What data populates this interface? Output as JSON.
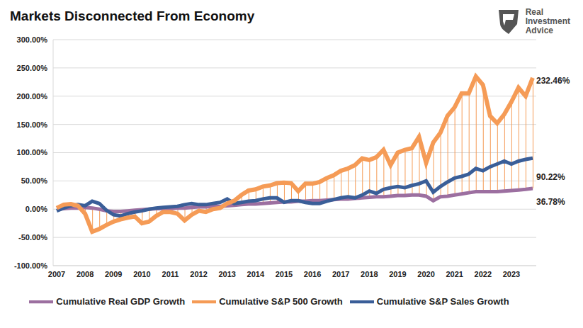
{
  "chart_data": {
    "type": "line",
    "title": "Markets Disconnected From Economy",
    "logo_text": "Real Investment Advice",
    "categories": [
      "2007",
      null,
      null,
      null,
      "2008",
      null,
      null,
      null,
      "2009",
      null,
      null,
      null,
      "2010",
      null,
      null,
      null,
      "2011",
      null,
      null,
      null,
      "2012",
      null,
      null,
      null,
      "2013",
      null,
      null,
      null,
      "2014",
      null,
      null,
      null,
      "2015",
      null,
      null,
      null,
      "2016",
      null,
      null,
      null,
      "2017",
      null,
      null,
      null,
      "2018",
      null,
      null,
      null,
      "2019",
      null,
      null,
      null,
      "2020",
      null,
      null,
      null,
      "2021",
      null,
      null,
      null,
      "2022",
      null,
      null,
      null,
      "2023",
      null,
      null,
      null
    ],
    "series": [
      {
        "name": "Cumulative S&P 500 Growth",
        "color": "#F59B56",
        "values": [
          2,
          8,
          9,
          6,
          -8,
          -40,
          -35,
          -28,
          -22,
          -18,
          -15,
          -13,
          -25,
          -22,
          -12,
          -5,
          -5,
          -8,
          -20,
          -10,
          -3,
          -5,
          0,
          2,
          10,
          15,
          25,
          33,
          35,
          40,
          42,
          46,
          47,
          46,
          32,
          45,
          45,
          48,
          55,
          60,
          68,
          72,
          78,
          90,
          87,
          92,
          105,
          78,
          100,
          105,
          108,
          128,
          82,
          118,
          135,
          165,
          180,
          205,
          205,
          235,
          220,
          165,
          152,
          168,
          190,
          215,
          200,
          232.46
        ],
        "value_labels": [
          null,
          null,
          null,
          null,
          null,
          null,
          null,
          null,
          null,
          null,
          null,
          null,
          null,
          null,
          null,
          null,
          null,
          null,
          null,
          null,
          null,
          null,
          null,
          null,
          null,
          null,
          null,
          null,
          null,
          null,
          null,
          null,
          null,
          null,
          null,
          null,
          null,
          null,
          null,
          null,
          null,
          null,
          null,
          null,
          null,
          null,
          null,
          null,
          null,
          null,
          null,
          null,
          null,
          null,
          null,
          null,
          null,
          null,
          null,
          null,
          null,
          null,
          null,
          null,
          null,
          null,
          null,
          "232.46%"
        ]
      },
      {
        "name": "Cumulative Real GDP Growth",
        "color": "#9C6FA0",
        "values": [
          0,
          1,
          2,
          2,
          3,
          2,
          0,
          -3,
          -4,
          -4,
          -3,
          -2,
          -1,
          0,
          1,
          1,
          1,
          2,
          2,
          3,
          4,
          4,
          5,
          5,
          6,
          7,
          8,
          9,
          9,
          10,
          11,
          12,
          13,
          13,
          14,
          14,
          15,
          15,
          16,
          17,
          18,
          18,
          19,
          20,
          21,
          22,
          22,
          23,
          24,
          24,
          25,
          25,
          23,
          15,
          22,
          23,
          25,
          27,
          29,
          31,
          31,
          31,
          31,
          32,
          33,
          34,
          35,
          36.78
        ],
        "value_labels": [
          null,
          null,
          null,
          null,
          null,
          null,
          null,
          null,
          null,
          null,
          null,
          null,
          null,
          null,
          null,
          null,
          null,
          null,
          null,
          null,
          null,
          null,
          null,
          null,
          null,
          null,
          null,
          null,
          null,
          null,
          null,
          null,
          null,
          null,
          null,
          null,
          null,
          null,
          null,
          null,
          null,
          null,
          null,
          null,
          null,
          null,
          null,
          null,
          null,
          null,
          null,
          null,
          null,
          null,
          null,
          null,
          null,
          null,
          null,
          null,
          null,
          null,
          null,
          null,
          null,
          null,
          null,
          "36.78%"
        ]
      },
      {
        "name": "Cumulative S&P Sales Growth",
        "color": "#3A5E98",
        "values": [
          -3,
          2,
          6,
          8,
          6,
          14,
          10,
          -2,
          -10,
          -12,
          -8,
          -5,
          -3,
          0,
          2,
          3,
          4,
          5,
          8,
          10,
          8,
          8,
          10,
          12,
          18,
          10,
          12,
          14,
          15,
          18,
          20,
          20,
          12,
          15,
          15,
          12,
          10,
          10,
          14,
          17,
          20,
          22,
          20,
          25,
          32,
          28,
          35,
          38,
          40,
          38,
          42,
          45,
          50,
          30,
          40,
          48,
          55,
          58,
          62,
          72,
          68,
          75,
          80,
          85,
          80,
          85,
          88,
          90.22
        ],
        "value_labels": [
          null,
          null,
          null,
          null,
          null,
          null,
          null,
          null,
          null,
          null,
          null,
          null,
          null,
          null,
          null,
          null,
          null,
          null,
          null,
          null,
          null,
          null,
          null,
          null,
          null,
          null,
          null,
          null,
          null,
          null,
          null,
          null,
          null,
          null,
          null,
          null,
          null,
          null,
          null,
          null,
          null,
          null,
          null,
          null,
          null,
          null,
          null,
          null,
          null,
          null,
          null,
          null,
          null,
          null,
          null,
          null,
          null,
          null,
          null,
          null,
          null,
          null,
          null,
          null,
          null,
          null,
          null,
          "90.22%"
        ]
      }
    ],
    "ylim": [
      -100,
      300
    ],
    "yticks": [
      {
        "value": -100,
        "label": "-100.00%"
      },
      {
        "value": -50,
        "label": "-50.00%"
      },
      {
        "value": 0,
        "label": "0.00%"
      },
      {
        "value": 50,
        "label": "50.00%"
      },
      {
        "value": 100,
        "label": "100.00%"
      },
      {
        "value": 150,
        "label": "150.00%"
      },
      {
        "value": 200,
        "label": "200.00%"
      },
      {
        "value": 250,
        "label": "250.00%"
      },
      {
        "value": 300,
        "label": "300.00%"
      }
    ],
    "grid": true,
    "legend": "bottom"
  }
}
